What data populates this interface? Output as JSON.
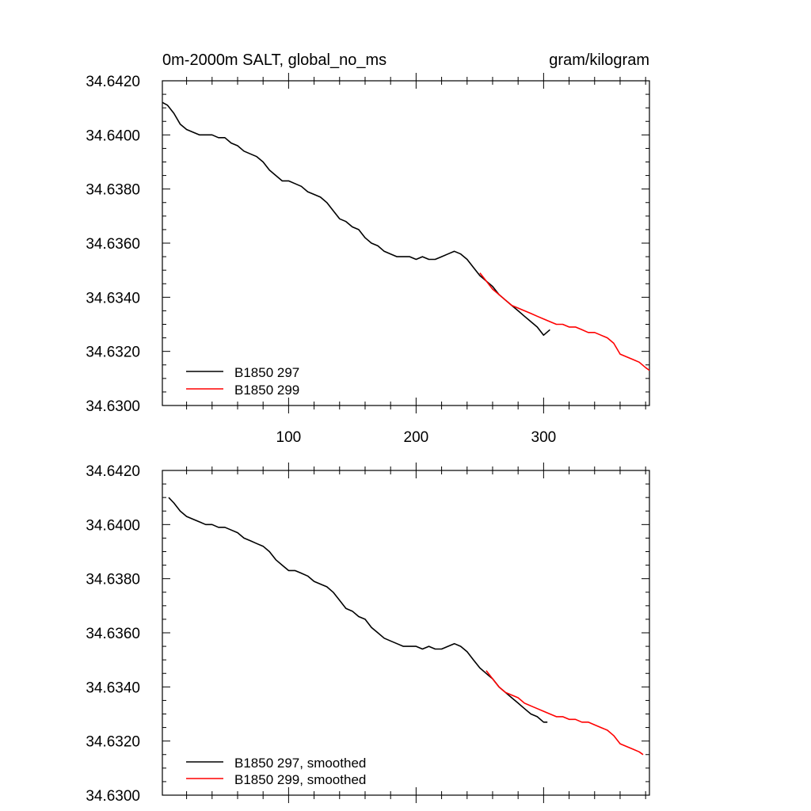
{
  "chart_data": [
    {
      "type": "line",
      "title_left": "0m-2000m SALT, global_no_ms",
      "title_right": "gram/kilogram",
      "xlabel": "",
      "ylabel": "",
      "xlim": [
        1,
        383
      ],
      "ylim": [
        34.63,
        34.642
      ],
      "x_ticks": [
        100,
        200,
        300
      ],
      "x_tick_labels": [
        "100",
        "200",
        "300"
      ],
      "y_ticks": [
        34.642,
        34.64,
        34.638,
        34.636,
        34.634,
        34.632,
        34.63
      ],
      "y_tick_labels": [
        "34.6420",
        "34.6400",
        "34.6380",
        "34.6360",
        "34.6340",
        "34.6320",
        "34.6300"
      ],
      "grid": false,
      "legend_position": "bottom-left",
      "series": [
        {
          "name": "B1850 297",
          "color": "#000000",
          "x": [
            1,
            5,
            10,
            15,
            20,
            25,
            30,
            35,
            40,
            45,
            50,
            55,
            60,
            65,
            70,
            75,
            80,
            85,
            90,
            95,
            100,
            105,
            110,
            115,
            120,
            125,
            130,
            135,
            140,
            145,
            150,
            155,
            160,
            165,
            170,
            175,
            180,
            185,
            190,
            195,
            200,
            205,
            210,
            215,
            220,
            225,
            230,
            235,
            240,
            245,
            250,
            255,
            260,
            265,
            270,
            275,
            280,
            285,
            290,
            295,
            300,
            305
          ],
          "y": [
            34.6412,
            34.6411,
            34.6408,
            34.6404,
            34.6402,
            34.6401,
            34.64,
            34.64,
            34.64,
            34.6399,
            34.6399,
            34.6397,
            34.6396,
            34.6394,
            34.6393,
            34.6392,
            34.639,
            34.6387,
            34.6385,
            34.6383,
            34.6383,
            34.6382,
            34.6381,
            34.6379,
            34.6378,
            34.6377,
            34.6375,
            34.6372,
            34.6369,
            34.6368,
            34.6366,
            34.6365,
            34.6362,
            34.636,
            34.6359,
            34.6357,
            34.6356,
            34.6355,
            34.6355,
            34.6355,
            34.6354,
            34.6355,
            34.6354,
            34.6354,
            34.6355,
            34.6356,
            34.6357,
            34.6356,
            34.6354,
            34.6351,
            34.6348,
            34.6346,
            34.6344,
            34.6341,
            34.6339,
            34.6337,
            34.6335,
            34.6333,
            34.6331,
            34.6329,
            34.6326,
            34.6328
          ]
        },
        {
          "name": "B1850 299",
          "color": "#ff0000",
          "x": [
            250,
            255,
            260,
            265,
            270,
            275,
            280,
            285,
            290,
            295,
            300,
            305,
            310,
            315,
            320,
            325,
            330,
            335,
            340,
            345,
            350,
            355,
            360,
            365,
            370,
            375,
            380,
            383
          ],
          "y": [
            34.6349,
            34.6346,
            34.6343,
            34.6341,
            34.6339,
            34.6337,
            34.6336,
            34.6335,
            34.6334,
            34.6333,
            34.6332,
            34.6331,
            34.633,
            34.633,
            34.6329,
            34.6329,
            34.6328,
            34.6327,
            34.6327,
            34.6326,
            34.6325,
            34.6323,
            34.6319,
            34.6318,
            34.6317,
            34.6316,
            34.6314,
            34.6313
          ]
        }
      ]
    },
    {
      "type": "line",
      "title_left": "",
      "title_right": "",
      "xlabel": "",
      "ylabel": "",
      "xlim": [
        1,
        383
      ],
      "ylim": [
        34.63,
        34.642
      ],
      "x_ticks": [
        100,
        200,
        300
      ],
      "x_tick_labels": [],
      "y_ticks": [
        34.642,
        34.64,
        34.638,
        34.636,
        34.634,
        34.632,
        34.63
      ],
      "y_tick_labels": [
        "34.6420",
        "34.6400",
        "34.6380",
        "34.6360",
        "34.6340",
        "34.6320",
        "34.6300"
      ],
      "grid": false,
      "legend_position": "bottom-left",
      "series": [
        {
          "name": "B1850 297, smoothed",
          "color": "#000000",
          "x": [
            6,
            10,
            15,
            20,
            25,
            30,
            35,
            40,
            45,
            50,
            55,
            60,
            65,
            70,
            75,
            80,
            85,
            90,
            95,
            100,
            105,
            110,
            115,
            120,
            125,
            130,
            135,
            140,
            145,
            150,
            155,
            160,
            165,
            170,
            175,
            180,
            185,
            190,
            195,
            200,
            205,
            210,
            215,
            220,
            225,
            230,
            235,
            240,
            245,
            250,
            255,
            260,
            265,
            270,
            275,
            280,
            285,
            290,
            295,
            300,
            303
          ],
          "y": [
            34.641,
            34.6408,
            34.6405,
            34.6403,
            34.6402,
            34.6401,
            34.64,
            34.64,
            34.6399,
            34.6399,
            34.6398,
            34.6397,
            34.6395,
            34.6394,
            34.6393,
            34.6392,
            34.639,
            34.6387,
            34.6385,
            34.6383,
            34.6383,
            34.6382,
            34.6381,
            34.6379,
            34.6378,
            34.6377,
            34.6375,
            34.6372,
            34.6369,
            34.6368,
            34.6366,
            34.6365,
            34.6362,
            34.636,
            34.6358,
            34.6357,
            34.6356,
            34.6355,
            34.6355,
            34.6355,
            34.6354,
            34.6355,
            34.6354,
            34.6354,
            34.6355,
            34.6356,
            34.6355,
            34.6353,
            34.635,
            34.6347,
            34.6345,
            34.6343,
            34.634,
            34.6338,
            34.6336,
            34.6334,
            34.6332,
            34.633,
            34.6329,
            34.6327,
            34.6327
          ]
        },
        {
          "name": "B1850 299, smoothed",
          "color": "#ff0000",
          "x": [
            255,
            260,
            265,
            270,
            275,
            280,
            285,
            290,
            295,
            300,
            305,
            310,
            315,
            320,
            325,
            330,
            335,
            340,
            345,
            350,
            355,
            360,
            365,
            370,
            375,
            378
          ],
          "y": [
            34.6346,
            34.6343,
            34.634,
            34.6338,
            34.6337,
            34.6336,
            34.6334,
            34.6333,
            34.6332,
            34.6331,
            34.633,
            34.6329,
            34.6329,
            34.6328,
            34.6328,
            34.6327,
            34.6327,
            34.6326,
            34.6325,
            34.6324,
            34.6322,
            34.6319,
            34.6318,
            34.6317,
            34.6316,
            34.6315
          ]
        }
      ]
    }
  ]
}
